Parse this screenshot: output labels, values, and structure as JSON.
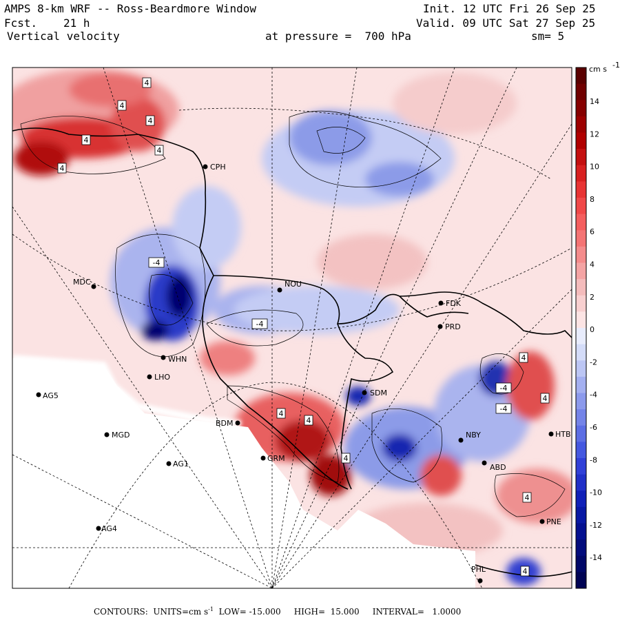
{
  "header": {
    "title": "AMPS 8-km WRF -- Ross-Beardmore Window",
    "forecast_label": "Fcst.",
    "forecast_hours": "21 h",
    "field": "Vertical velocity",
    "init": "Init. 12 UTC Fri 26 Sep 25",
    "valid": "Valid. 09 UTC Sat 27 Sep 25",
    "pressure": "at pressure =  700 hPa",
    "smoothing": "sm= 5"
  },
  "colorbar": {
    "units": "cm s",
    "units_exp": "-1",
    "ticks": [
      "14",
      "12",
      "10",
      "8",
      "6",
      "4",
      "2",
      "0",
      "-2",
      "-4",
      "-6",
      "-8",
      "-10",
      "-12",
      "-14"
    ],
    "colors": {
      "pos_dark": "#7a0000",
      "pos_mid": "#e02020",
      "pos_light": "#f8c8c8",
      "neutral": "#ffffff",
      "neg_light": "#c8d0f8",
      "neg_mid": "#3040d0",
      "neg_dark": "#000060"
    }
  },
  "stations": [
    {
      "id": "CPH",
      "label": "CPH"
    },
    {
      "id": "MDC",
      "label": "MDC"
    },
    {
      "id": "NOU",
      "label": "NOU"
    },
    {
      "id": "FDK",
      "label": "FDK"
    },
    {
      "id": "PRD",
      "label": "PRD"
    },
    {
      "id": "WHN",
      "label": "WHN"
    },
    {
      "id": "LHO",
      "label": "LHO"
    },
    {
      "id": "AG5",
      "label": "AG5"
    },
    {
      "id": "SDM",
      "label": "SDM"
    },
    {
      "id": "BDM",
      "label": "BDM"
    },
    {
      "id": "MGD",
      "label": "MGD"
    },
    {
      "id": "GRM",
      "label": "GRM"
    },
    {
      "id": "AG1",
      "label": "AG1"
    },
    {
      "id": "NBY",
      "label": "NBY"
    },
    {
      "id": "ABD",
      "label": "ABD"
    },
    {
      "id": "HTB",
      "label": "HTB"
    },
    {
      "id": "PNE",
      "label": "PNE"
    },
    {
      "id": "AG4",
      "label": "AG4"
    },
    {
      "id": "PHL",
      "label": "PHL"
    }
  ],
  "contour_labels": [
    "4",
    "4",
    "4",
    "4",
    "4",
    "4",
    "4",
    "-4",
    "-4",
    "-4",
    "-4",
    "4",
    "4",
    "4",
    "4",
    "4",
    "4"
  ],
  "footer": {
    "contours": "CONTOURS:",
    "units_label": "UNITS=cm s",
    "units_exp": "-1",
    "low": "LOW= -15.000",
    "high": "HIGH=  15.000",
    "interval": "INTERVAL=   1.0000"
  }
}
